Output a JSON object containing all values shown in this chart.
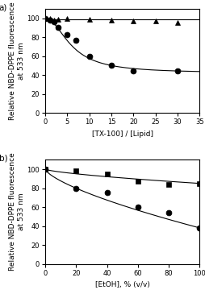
{
  "panel_a": {
    "xlabel": "[TX-100] / [Lipid]",
    "ylabel": "Relative NBD-DPPE fluorescence\nat 533 nm",
    "xlim": [
      0,
      35
    ],
    "ylim": [
      0,
      110
    ],
    "yticks": [
      0,
      20,
      40,
      60,
      80,
      100
    ],
    "xticks": [
      0,
      5,
      10,
      15,
      20,
      25,
      30,
      35
    ],
    "triangles_x": [
      0,
      1,
      2,
      3,
      5,
      10,
      15,
      20,
      25,
      30
    ],
    "triangles_y": [
      100,
      100,
      98,
      99,
      100,
      99,
      98,
      97,
      97,
      95
    ],
    "circles_x": [
      0,
      1,
      2,
      3,
      5,
      7,
      10,
      15,
      20,
      30
    ],
    "circles_y": [
      100,
      98,
      96,
      90,
      83,
      77,
      60,
      50,
      44,
      44
    ],
    "tri_line_y": 98.5,
    "label": "a)"
  },
  "panel_b": {
    "xlabel": "[EtOH], % (v/v)",
    "ylabel": "Relative NBD-DPPE fluorescence\nat 533 nm",
    "xlim": [
      0,
      100
    ],
    "ylim": [
      0,
      110
    ],
    "yticks": [
      0,
      20,
      40,
      60,
      80,
      100
    ],
    "xticks": [
      0,
      20,
      40,
      60,
      80,
      100
    ],
    "squares_x": [
      0,
      20,
      40,
      60,
      80,
      100
    ],
    "squares_y": [
      100,
      98,
      95,
      87,
      84,
      85
    ],
    "circles_x": [
      0,
      20,
      40,
      60,
      80,
      100
    ],
    "circles_y": [
      100,
      80,
      75,
      60,
      54,
      38
    ],
    "label": "b)"
  },
  "marker_color": "black",
  "line_color": "black",
  "bg_color": "white",
  "label_fontsize": 6.5,
  "tick_fontsize": 6,
  "marker_size": 5
}
